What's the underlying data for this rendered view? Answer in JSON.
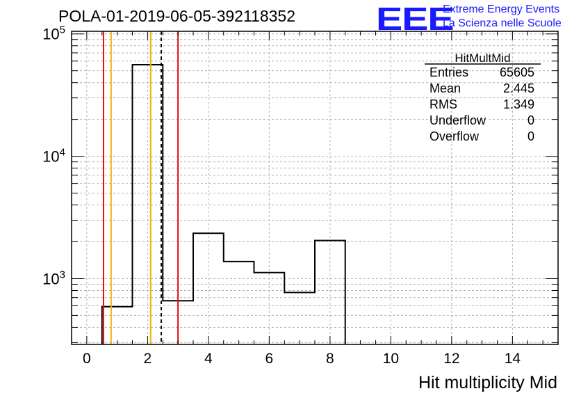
{
  "header": {
    "run_title": "POLA-01-2019-06-05-392118352",
    "logo_text": "EEE",
    "logo_line1": "Extreme Energy Events",
    "logo_line2": "La Scienza nelle Scuole",
    "brand_color": "#1a1aff"
  },
  "stats_box": {
    "name": "HitMultMid",
    "rows": [
      {
        "label": "Entries",
        "value": "65605"
      },
      {
        "label": "Mean",
        "value": "2.445"
      },
      {
        "label": "RMS",
        "value": "1.349"
      },
      {
        "label": "Underflow",
        "value": "0"
      },
      {
        "label": "Overflow",
        "value": "0"
      }
    ]
  },
  "chart_data": {
    "type": "bar",
    "histogram": true,
    "xlabel": "Hit multiplicity Mid",
    "ylabel": "",
    "xlim": [
      -0.5,
      15.5
    ],
    "ylim": [
      290,
      105000
    ],
    "y_scale": "log",
    "grid": true,
    "bin_edges": [
      0.5,
      1.5,
      2.5,
      3.5,
      4.5,
      5.5,
      6.5,
      7.5,
      8.5
    ],
    "values": [
      590,
      56000,
      660,
      2350,
      1380,
      1120,
      770,
      2050
    ],
    "x_ticks": [
      0,
      2,
      4,
      6,
      8,
      10,
      12,
      14
    ],
    "y_ticks": [
      {
        "value": 1000,
        "base": "10",
        "exp": "3"
      },
      {
        "value": 10000,
        "base": "10",
        "exp": "4"
      },
      {
        "value": 100000,
        "base": "10",
        "exp": "5"
      }
    ],
    "vertical_lines": [
      {
        "x": 0.55,
        "color": "#e01010",
        "style": "solid"
      },
      {
        "x": 0.8,
        "color": "#f0b400",
        "style": "solid"
      },
      {
        "x": 2.1,
        "color": "#f0b400",
        "style": "solid"
      },
      {
        "x": 2.45,
        "color": "#000000",
        "style": "dashed"
      },
      {
        "x": 3.0,
        "color": "#e01010",
        "style": "solid"
      }
    ],
    "line_color": "#000000"
  }
}
